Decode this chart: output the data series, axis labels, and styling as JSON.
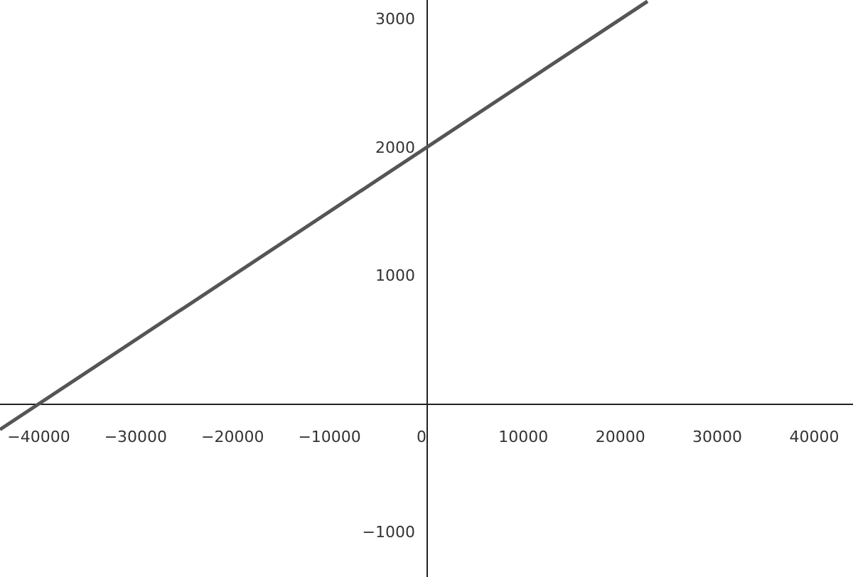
{
  "chart_data": {
    "type": "line",
    "x": [
      -44000,
      22800
    ],
    "series": [
      {
        "color": "#555555",
        "values": [
          -200,
          3140
        ]
      }
    ],
    "xlim": [
      -44000,
      44000
    ],
    "ylim": [
      -1350,
      3150
    ],
    "xticks": [
      {
        "value": -40000,
        "label": "−40000"
      },
      {
        "value": -30000,
        "label": "−30000"
      },
      {
        "value": -20000,
        "label": "−20000"
      },
      {
        "value": -10000,
        "label": "−10000"
      },
      0,
      10000,
      20000,
      30000,
      40000
    ],
    "yticks": [
      {
        "value": -1000,
        "label": "−1000"
      },
      1000,
      2000,
      3000
    ],
    "grid": false,
    "marker": "none",
    "line_style": "solid"
  }
}
